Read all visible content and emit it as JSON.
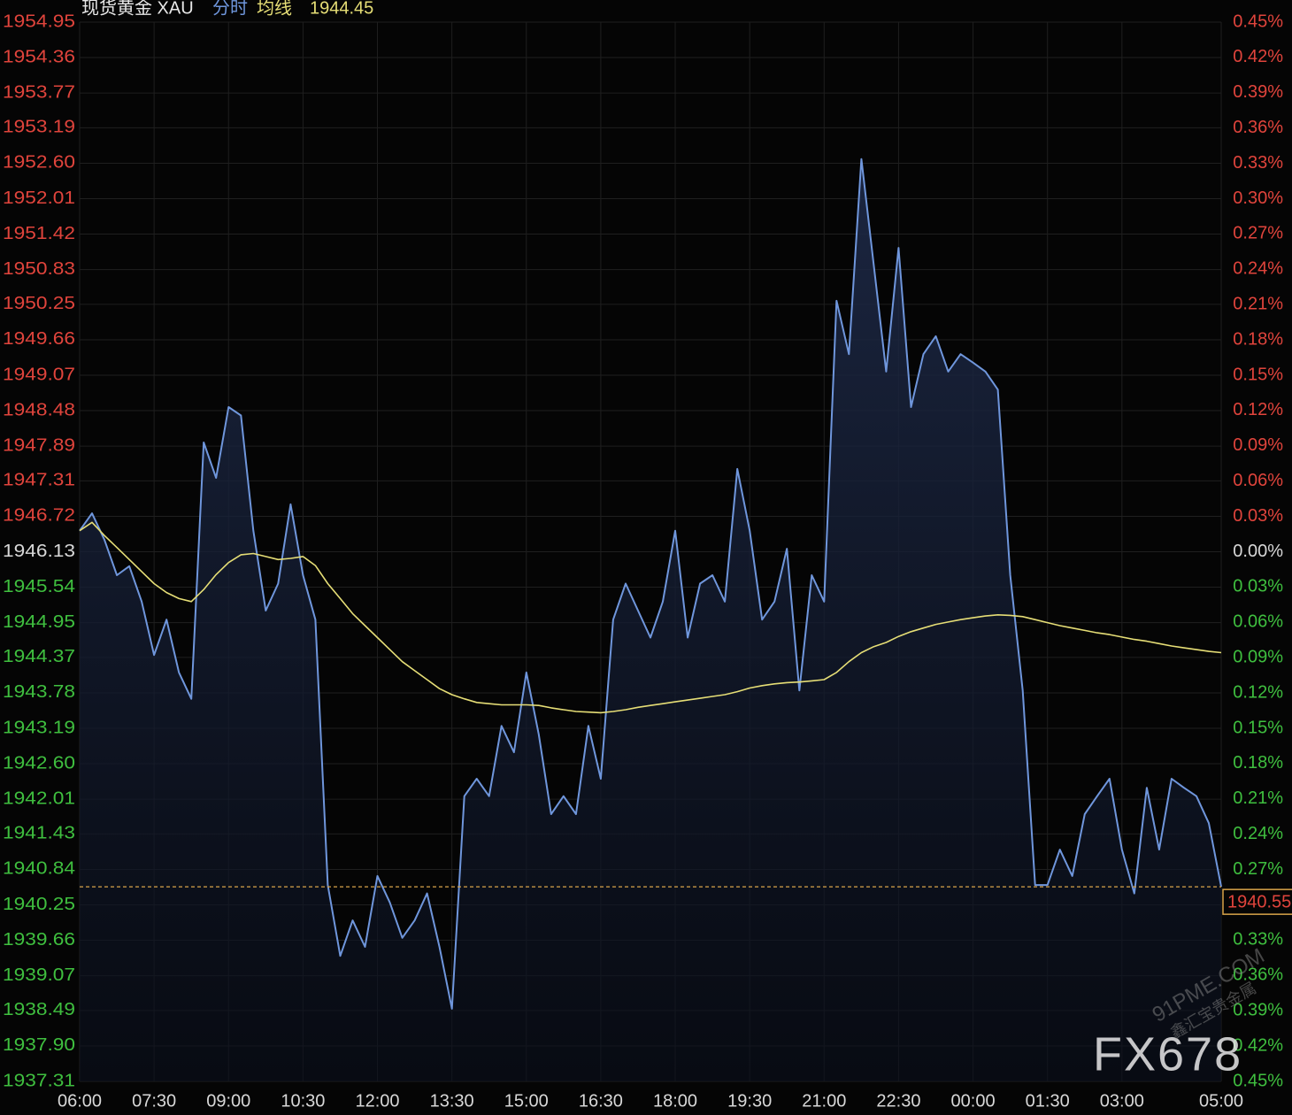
{
  "chart_data": {
    "type": "line",
    "title": "现货黄金 XAU",
    "last_average": 1944.45,
    "last_price": 1940.55,
    "up_color": "#e0443c",
    "down_color": "#3fbf3f",
    "flat_color": "#d8d8d8",
    "grid": true,
    "watermark": [
      "FX678",
      "91PME.COM",
      "鑫汇宝贵金属"
    ],
    "xlim": [
      "06:00",
      "05:00"
    ],
    "xticks": [
      "06:00",
      "07:30",
      "09:00",
      "10:30",
      "12:00",
      "13:30",
      "15:00",
      "16:30",
      "18:00",
      "19:30",
      "21:00",
      "22:30",
      "00:00",
      "01:30",
      "03:00",
      "05:00"
    ],
    "ylim": [
      1937.31,
      1954.95
    ],
    "yticks": [
      1954.95,
      1954.36,
      1953.77,
      1953.19,
      {
        "value": 1952.6,
        "label": "1952.60"
      },
      1952.01,
      1951.42,
      1950.83,
      1950.25,
      1949.66,
      1949.07,
      1948.48,
      1947.89,
      1947.31,
      1946.72,
      1946.13,
      1945.54,
      1944.95,
      1944.37,
      1943.78,
      1943.19,
      {
        "value": 1942.6,
        "label": "1942.60"
      },
      1942.01,
      1941.43,
      1940.84,
      1940.25,
      1939.66,
      1939.07,
      1938.49,
      {
        "value": 1937.9,
        "label": "1937.90"
      },
      1937.31
    ],
    "y2lim": [
      -0.45,
      0.45
    ],
    "y2ticks": [
      {
        "value": 0.45,
        "label": "0.45%"
      },
      {
        "value": 0.42,
        "label": "0.42%"
      },
      {
        "value": 0.39,
        "label": "0.39%"
      },
      {
        "value": 0.36,
        "label": "0.36%"
      },
      {
        "value": 0.33,
        "label": "0.33%"
      },
      {
        "value": 0.3,
        "label": "0.30%"
      },
      {
        "value": 0.27,
        "label": "0.27%"
      },
      {
        "value": 0.24,
        "label": "0.24%"
      },
      {
        "value": 0.21,
        "label": "0.21%"
      },
      {
        "value": 0.18,
        "label": "0.18%"
      },
      {
        "value": 0.15,
        "label": "0.15%"
      },
      {
        "value": 0.12,
        "label": "0.12%"
      },
      {
        "value": 0.09,
        "label": "0.09%"
      },
      {
        "value": 0.06,
        "label": "0.06%"
      },
      {
        "value": 0.03,
        "label": "0.03%"
      },
      {
        "value": 0,
        "label": "0.00%"
      },
      {
        "value": -0.03,
        "label": "0.03%"
      },
      {
        "value": -0.06,
        "label": "0.06%"
      },
      {
        "value": -0.09,
        "label": "0.09%"
      },
      {
        "value": -0.12,
        "label": "0.12%"
      },
      {
        "value": -0.15,
        "label": "0.15%"
      },
      {
        "value": -0.18,
        "label": "0.18%"
      },
      {
        "value": -0.21,
        "label": "0.21%"
      },
      {
        "value": -0.24,
        "label": "0.24%"
      },
      {
        "value": -0.27,
        "label": "0.27%"
      },
      {
        "value": -0.3,
        "label": "0.30%"
      },
      {
        "value": -0.33,
        "label": "0.33%"
      },
      {
        "value": -0.36,
        "label": "0.36%"
      },
      {
        "value": -0.39,
        "label": "0.39%"
      },
      {
        "value": -0.42,
        "label": "0.42%"
      },
      {
        "value": -0.45,
        "label": "0.45%"
      }
    ],
    "x": [
      "06:00",
      "06:15",
      "06:30",
      "06:45",
      "07:00",
      "07:15",
      "07:30",
      "07:45",
      "08:00",
      "08:15",
      "08:30",
      "08:45",
      "09:00",
      "09:15",
      "09:30",
      "09:45",
      "10:00",
      "10:15",
      "10:30",
      "10:45",
      "11:00",
      "11:15",
      "11:30",
      "11:45",
      "12:00",
      "12:15",
      "12:30",
      "12:45",
      "13:00",
      "13:15",
      "13:30",
      "13:45",
      "14:00",
      "14:15",
      "14:30",
      "14:45",
      "15:00",
      "15:15",
      "15:30",
      "15:45",
      "16:00",
      "16:15",
      "16:30",
      "16:45",
      "17:00",
      "17:15",
      "17:30",
      "17:45",
      "18:00",
      "18:15",
      "18:30",
      "18:45",
      "19:00",
      "19:15",
      "19:30",
      "19:45",
      "20:00",
      "20:15",
      "20:30",
      "20:45",
      "21:00",
      "21:15",
      "21:30",
      "21:45",
      "22:00",
      "22:15",
      "22:30",
      "22:45",
      "23:00",
      "23:15",
      "23:30",
      "23:45",
      "00:00",
      "00:15",
      "00:30",
      "00:45",
      "01:00",
      "01:15",
      "01:30",
      "01:45",
      "02:00",
      "02:15",
      "02:30",
      "02:45",
      "03:00",
      "03:15",
      "03:30",
      "03:45",
      "04:00",
      "04:15",
      "04:30",
      "04:45",
      "05:00"
    ],
    "series": [
      {
        "name": "分时",
        "color": "#6f96dc",
        "values": [
          1946.48,
          1946.77,
          1946.33,
          1945.74,
          1945.89,
          1945.3,
          1944.41,
          1945.0,
          1944.12,
          1943.68,
          1947.95,
          1947.36,
          1948.54,
          1948.4,
          1946.48,
          1945.15,
          1945.6,
          1946.92,
          1945.74,
          1945.0,
          1940.58,
          1939.4,
          1939.99,
          1939.55,
          1940.73,
          1940.29,
          1939.7,
          1939.99,
          1940.44,
          1939.55,
          1938.52,
          1942.06,
          1942.35,
          1942.06,
          1943.23,
          1942.79,
          1944.12,
          1943.09,
          1941.76,
          1942.06,
          1941.76,
          1943.23,
          1942.35,
          1945.0,
          1945.6,
          1945.15,
          1944.7,
          1945.3,
          1946.48,
          1944.7,
          1945.6,
          1945.74,
          1945.3,
          1947.51,
          1946.48,
          1945.0,
          1945.3,
          1946.18,
          1943.82,
          1945.74,
          1945.3,
          1950.31,
          1949.42,
          1952.67,
          1950.9,
          1949.13,
          1951.19,
          1948.54,
          1949.42,
          1949.72,
          1949.13,
          1949.42,
          1949.28,
          1949.13,
          1948.83,
          1945.74,
          1943.82,
          1940.58,
          1940.58,
          1941.17,
          1940.73,
          1941.76,
          1942.06,
          1942.35,
          1941.17,
          1940.44,
          1942.2,
          1941.17,
          1942.35,
          1942.2,
          1942.06,
          1941.61,
          1940.55
        ]
      },
      {
        "name": "均线",
        "color": "#e6de76",
        "values": [
          1946.48,
          1946.62,
          1946.4,
          1946.2,
          1946.0,
          1945.8,
          1945.6,
          1945.45,
          1945.35,
          1945.3,
          1945.5,
          1945.75,
          1945.95,
          1946.08,
          1946.1,
          1946.05,
          1946.0,
          1946.02,
          1946.05,
          1945.9,
          1945.6,
          1945.35,
          1945.1,
          1944.9,
          1944.7,
          1944.5,
          1944.3,
          1944.15,
          1944.0,
          1943.85,
          1943.75,
          1943.68,
          1943.62,
          1943.6,
          1943.58,
          1943.58,
          1943.58,
          1943.57,
          1943.53,
          1943.5,
          1943.47,
          1943.46,
          1943.45,
          1943.47,
          1943.5,
          1943.54,
          1943.57,
          1943.6,
          1943.63,
          1943.66,
          1943.69,
          1943.72,
          1943.75,
          1943.8,
          1943.86,
          1943.9,
          1943.93,
          1943.95,
          1943.96,
          1943.98,
          1944.0,
          1944.12,
          1944.3,
          1944.45,
          1944.55,
          1944.62,
          1944.72,
          1944.8,
          1944.86,
          1944.92,
          1944.96,
          1945.0,
          1945.03,
          1945.06,
          1945.08,
          1945.07,
          1945.05,
          1945.0,
          1944.95,
          1944.9,
          1944.86,
          1944.82,
          1944.78,
          1944.75,
          1944.71,
          1944.67,
          1944.64,
          1944.6,
          1944.56,
          1944.53,
          1944.5,
          1944.47,
          1944.45
        ]
      }
    ]
  }
}
